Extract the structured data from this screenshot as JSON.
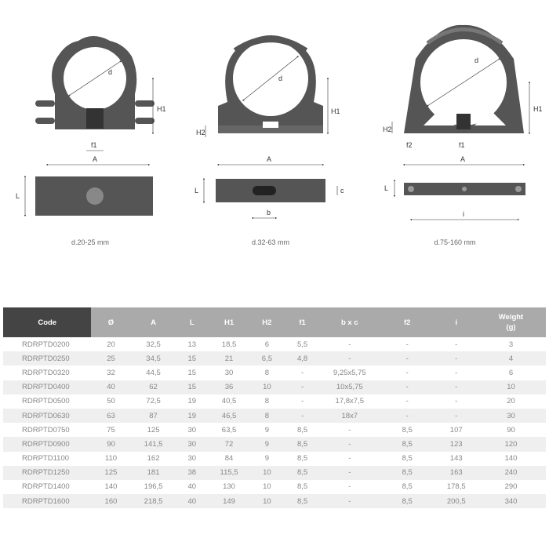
{
  "drawings": [
    {
      "caption": "d.20-25 mm",
      "labels": {
        "d": "d",
        "h1": "H1",
        "f1": "f1",
        "a": "A",
        "l": "L"
      }
    },
    {
      "caption": "d.32-63 mm",
      "labels": {
        "d": "d",
        "h1": "H1",
        "h2": "H2",
        "a": "A",
        "l": "L",
        "b": "b",
        "c": "c"
      }
    },
    {
      "caption": "d.75-160 mm",
      "labels": {
        "d": "d",
        "h1": "H1",
        "h2": "H2",
        "f1": "f1",
        "f2": "f2",
        "a": "A",
        "l": "L",
        "i": "i"
      }
    }
  ],
  "colors": {
    "header_code": "#444444",
    "header": "#aaaaaa",
    "stripe": "#efefef",
    "part": "#555555"
  },
  "table": {
    "headers": [
      "Code",
      "Ø",
      "A",
      "L",
      "H1",
      "H2",
      "f1",
      "b x c",
      "f2",
      "i",
      "Weight (g)"
    ],
    "rows": [
      [
        "RDRPTD0200",
        "20",
        "32,5",
        "13",
        "18,5",
        "6",
        "5,5",
        "-",
        "-",
        "-",
        "3"
      ],
      [
        "RDRPTD0250",
        "25",
        "34,5",
        "15",
        "21",
        "6,5",
        "4,8",
        "-",
        "-",
        "-",
        "4"
      ],
      [
        "RDRPTD0320",
        "32",
        "44,5",
        "15",
        "30",
        "8",
        "-",
        "9,25x5,75",
        "-",
        "-",
        "6"
      ],
      [
        "RDRPTD0400",
        "40",
        "62",
        "15",
        "36",
        "10",
        "-",
        "10x5,75",
        "-",
        "-",
        "10"
      ],
      [
        "RDRPTD0500",
        "50",
        "72,5",
        "19",
        "40,5",
        "8",
        "-",
        "17,8x7,5",
        "-",
        "-",
        "20"
      ],
      [
        "RDRPTD0630",
        "63",
        "87",
        "19",
        "46,5",
        "8",
        "-",
        "18x7",
        "-",
        "-",
        "30"
      ],
      [
        "RDRPTD0750",
        "75",
        "125",
        "30",
        "63,5",
        "9",
        "8,5",
        "-",
        "8,5",
        "107",
        "90"
      ],
      [
        "RDRPTD0900",
        "90",
        "141,5",
        "30",
        "72",
        "9",
        "8,5",
        "-",
        "8,5",
        "123",
        "120"
      ],
      [
        "RDRPTD1100",
        "110",
        "162",
        "30",
        "84",
        "9",
        "8,5",
        "-",
        "8,5",
        "143",
        "140"
      ],
      [
        "RDRPTD1250",
        "125",
        "181",
        "38",
        "115,5",
        "10",
        "8,5",
        "-",
        "8,5",
        "163",
        "240"
      ],
      [
        "RDRPTD1400",
        "140",
        "196,5",
        "40",
        "130",
        "10",
        "8,5",
        "-",
        "8,5",
        "178,5",
        "290"
      ],
      [
        "RDRPTD1600",
        "160",
        "218,5",
        "40",
        "149",
        "10",
        "8,5",
        "-",
        "8,5",
        "200,5",
        "340"
      ]
    ]
  }
}
